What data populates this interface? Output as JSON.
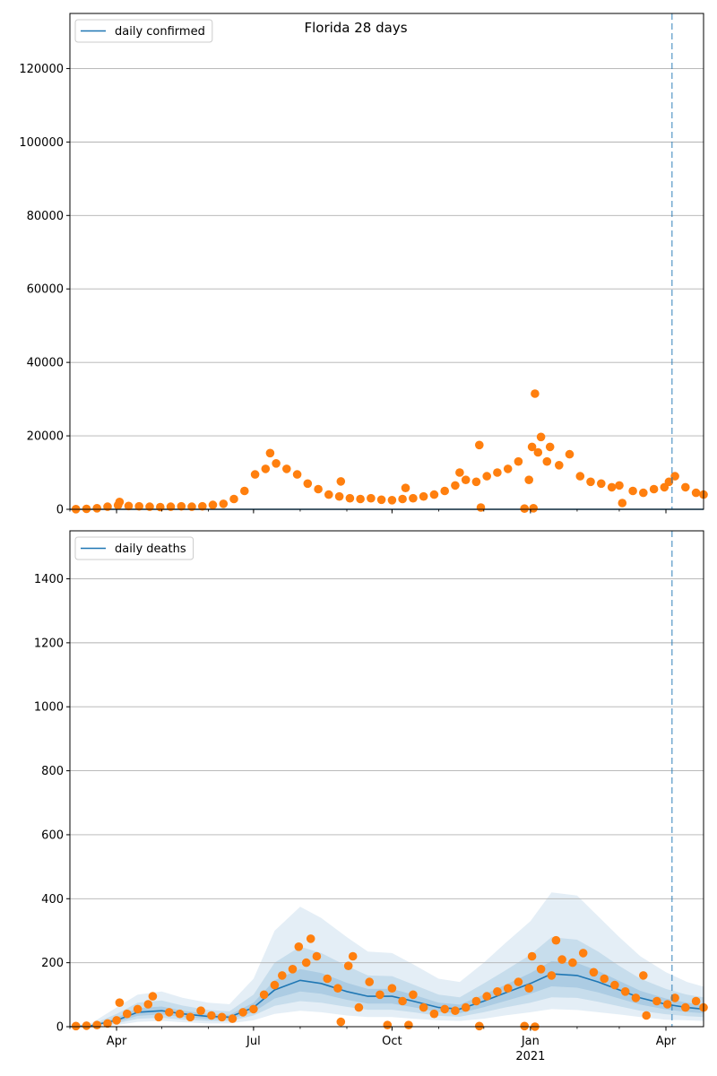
{
  "figure": {
    "title": "Florida 28 days",
    "year_label": "2021"
  },
  "chart_data": [
    {
      "type": "scatter",
      "legend": "top-left",
      "grid": "y",
      "line_series": {
        "name": "daily confirmed",
        "color": "#1f77b4",
        "values_note": "line along zero"
      },
      "points_color": "#ff7f0e",
      "xlim": [
        "2020-03-01",
        "2021-04-26"
      ],
      "ylim": [
        0,
        135000
      ],
      "yticks": [
        0,
        20000,
        40000,
        60000,
        80000,
        100000,
        120000
      ],
      "xticks": [
        {
          "date": "2020-04-01",
          "label": "Apr"
        },
        {
          "date": "2020-07-01",
          "label": "Jul"
        },
        {
          "date": "2020-10-01",
          "label": "Oct"
        },
        {
          "date": "2021-01-01",
          "label": "Jan"
        },
        {
          "date": "2021-04-01",
          "label": "Apr"
        }
      ],
      "vline_date": "2021-04-05",
      "points": [
        [
          "2020-03-05",
          50
        ],
        [
          "2020-03-12",
          120
        ],
        [
          "2020-03-19",
          300
        ],
        [
          "2020-03-26",
          700
        ],
        [
          "2020-04-02",
          1100
        ],
        [
          "2020-04-03",
          2000
        ],
        [
          "2020-04-09",
          900
        ],
        [
          "2020-04-16",
          800
        ],
        [
          "2020-04-23",
          700
        ],
        [
          "2020-04-30",
          600
        ],
        [
          "2020-05-07",
          700
        ],
        [
          "2020-05-14",
          800
        ],
        [
          "2020-05-21",
          700
        ],
        [
          "2020-05-28",
          800
        ],
        [
          "2020-06-04",
          1200
        ],
        [
          "2020-06-11",
          1500
        ],
        [
          "2020-06-18",
          2800
        ],
        [
          "2020-06-25",
          5000
        ],
        [
          "2020-07-02",
          9500
        ],
        [
          "2020-07-09",
          11000
        ],
        [
          "2020-07-12",
          15300
        ],
        [
          "2020-07-16",
          12500
        ],
        [
          "2020-07-23",
          11000
        ],
        [
          "2020-07-30",
          9500
        ],
        [
          "2020-08-06",
          7000
        ],
        [
          "2020-08-13",
          5500
        ],
        [
          "2020-08-20",
          4000
        ],
        [
          "2020-08-27",
          3500
        ],
        [
          "2020-08-28",
          7600
        ],
        [
          "2020-09-03",
          3000
        ],
        [
          "2020-09-10",
          2800
        ],
        [
          "2020-09-17",
          3000
        ],
        [
          "2020-09-24",
          2600
        ],
        [
          "2020-10-01",
          2500
        ],
        [
          "2020-10-08",
          2800
        ],
        [
          "2020-10-10",
          5800
        ],
        [
          "2020-10-15",
          3000
        ],
        [
          "2020-10-22",
          3500
        ],
        [
          "2020-10-29",
          4000
        ],
        [
          "2020-11-05",
          5000
        ],
        [
          "2020-11-12",
          6500
        ],
        [
          "2020-11-15",
          10000
        ],
        [
          "2020-11-19",
          8000
        ],
        [
          "2020-11-26",
          7500
        ],
        [
          "2020-11-28",
          17500
        ],
        [
          "2020-11-29",
          500
        ],
        [
          "2020-12-03",
          9000
        ],
        [
          "2020-12-10",
          10000
        ],
        [
          "2020-12-17",
          11000
        ],
        [
          "2020-12-24",
          13000
        ],
        [
          "2020-12-28",
          200
        ],
        [
          "2020-12-31",
          8000
        ],
        [
          "2021-01-02",
          17000
        ],
        [
          "2021-01-03",
          300
        ],
        [
          "2021-01-04",
          31500
        ],
        [
          "2021-01-06",
          15500
        ],
        [
          "2021-01-08",
          19700
        ],
        [
          "2021-01-12",
          13000
        ],
        [
          "2021-01-14",
          17000
        ],
        [
          "2021-01-20",
          12000
        ],
        [
          "2021-01-27",
          15000
        ],
        [
          "2021-02-03",
          9000
        ],
        [
          "2021-02-10",
          7500
        ],
        [
          "2021-02-17",
          7000
        ],
        [
          "2021-02-24",
          6000
        ],
        [
          "2021-03-01",
          6500
        ],
        [
          "2021-03-03",
          1700
        ],
        [
          "2021-03-10",
          5000
        ],
        [
          "2021-03-17",
          4500
        ],
        [
          "2021-03-24",
          5500
        ],
        [
          "2021-03-31",
          6000
        ],
        [
          "2021-04-03",
          7500
        ],
        [
          "2021-04-07",
          9000
        ],
        [
          "2021-04-14",
          6000
        ],
        [
          "2021-04-21",
          4500
        ],
        [
          "2021-04-26",
          4000
        ]
      ]
    },
    {
      "type": "line",
      "legend": "top-left",
      "grid": "y",
      "line_series": {
        "name": "daily deaths",
        "color": "#1f77b4"
      },
      "band_color": "#1f77b4",
      "points_color": "#ff7f0e",
      "xlim": [
        "2020-03-01",
        "2021-04-26"
      ],
      "ylim": [
        0,
        1550
      ],
      "yticks": [
        0,
        200,
        400,
        600,
        800,
        1000,
        1200,
        1400
      ],
      "xticks": [
        {
          "date": "2020-04-01",
          "label": "Apr"
        },
        {
          "date": "2020-07-01",
          "label": "Jul"
        },
        {
          "date": "2020-10-01",
          "label": "Oct"
        },
        {
          "date": "2021-01-01",
          "label": "Jan"
        },
        {
          "date": "2021-04-01",
          "label": "Apr"
        }
      ],
      "vline_date": "2021-04-05",
      "mean": [
        [
          "2020-03-01",
          0
        ],
        [
          "2020-03-15",
          3
        ],
        [
          "2020-04-01",
          20
        ],
        [
          "2020-04-15",
          45
        ],
        [
          "2020-05-01",
          50
        ],
        [
          "2020-05-15",
          40
        ],
        [
          "2020-06-01",
          32
        ],
        [
          "2020-06-15",
          30
        ],
        [
          "2020-07-01",
          60
        ],
        [
          "2020-07-15",
          115
        ],
        [
          "2020-08-01",
          145
        ],
        [
          "2020-08-15",
          135
        ],
        [
          "2020-09-01",
          110
        ],
        [
          "2020-09-15",
          95
        ],
        [
          "2020-10-01",
          95
        ],
        [
          "2020-10-15",
          80
        ],
        [
          "2020-11-01",
          60
        ],
        [
          "2020-11-15",
          55
        ],
        [
          "2020-12-01",
          80
        ],
        [
          "2020-12-15",
          105
        ],
        [
          "2021-01-01",
          135
        ],
        [
          "2021-01-15",
          165
        ],
        [
          "2021-02-01",
          160
        ],
        [
          "2021-02-15",
          140
        ],
        [
          "2021-03-01",
          115
        ],
        [
          "2021-03-15",
          90
        ],
        [
          "2021-04-01",
          70
        ],
        [
          "2021-04-15",
          60
        ],
        [
          "2021-04-26",
          55
        ]
      ],
      "band_outer": [
        [
          "2020-03-01",
          0,
          2
        ],
        [
          "2020-03-15",
          0,
          10
        ],
        [
          "2020-04-01",
          5,
          60
        ],
        [
          "2020-04-15",
          15,
          100
        ],
        [
          "2020-05-01",
          18,
          110
        ],
        [
          "2020-05-15",
          14,
          90
        ],
        [
          "2020-06-01",
          10,
          75
        ],
        [
          "2020-06-15",
          10,
          70
        ],
        [
          "2020-07-01",
          20,
          150
        ],
        [
          "2020-07-15",
          40,
          300
        ],
        [
          "2020-08-01",
          50,
          375
        ],
        [
          "2020-08-15",
          45,
          340
        ],
        [
          "2020-09-01",
          35,
          280
        ],
        [
          "2020-09-15",
          30,
          235
        ],
        [
          "2020-10-01",
          30,
          230
        ],
        [
          "2020-10-15",
          25,
          195
        ],
        [
          "2020-11-01",
          20,
          150
        ],
        [
          "2020-11-15",
          18,
          140
        ],
        [
          "2020-12-01",
          25,
          200
        ],
        [
          "2020-12-15",
          35,
          260
        ],
        [
          "2021-01-01",
          45,
          330
        ],
        [
          "2021-01-15",
          55,
          420
        ],
        [
          "2021-02-01",
          52,
          410
        ],
        [
          "2021-02-15",
          45,
          345
        ],
        [
          "2021-03-01",
          38,
          280
        ],
        [
          "2021-03-15",
          30,
          220
        ],
        [
          "2021-04-01",
          22,
          170
        ],
        [
          "2021-04-15",
          20,
          140
        ],
        [
          "2021-04-26",
          18,
          125
        ]
      ],
      "band_mid": [
        [
          "2020-03-01",
          0,
          1
        ],
        [
          "2020-03-15",
          1,
          6
        ],
        [
          "2020-04-01",
          10,
          40
        ],
        [
          "2020-04-15",
          25,
          75
        ],
        [
          "2020-05-01",
          28,
          82
        ],
        [
          "2020-05-15",
          22,
          66
        ],
        [
          "2020-06-01",
          18,
          52
        ],
        [
          "2020-06-15",
          17,
          48
        ],
        [
          "2020-07-01",
          35,
          100
        ],
        [
          "2020-07-15",
          65,
          200
        ],
        [
          "2020-08-01",
          80,
          250
        ],
        [
          "2020-08-15",
          75,
          230
        ],
        [
          "2020-09-01",
          62,
          190
        ],
        [
          "2020-09-15",
          53,
          160
        ],
        [
          "2020-10-01",
          53,
          158
        ],
        [
          "2020-10-15",
          45,
          132
        ],
        [
          "2020-11-01",
          34,
          100
        ],
        [
          "2020-11-15",
          31,
          92
        ],
        [
          "2020-12-01",
          45,
          135
        ],
        [
          "2020-12-15",
          60,
          175
        ],
        [
          "2021-01-01",
          75,
          225
        ],
        [
          "2021-01-15",
          92,
          280
        ],
        [
          "2021-02-01",
          90,
          272
        ],
        [
          "2021-02-15",
          78,
          235
        ],
        [
          "2021-03-01",
          64,
          190
        ],
        [
          "2021-03-15",
          50,
          150
        ],
        [
          "2021-04-01",
          39,
          118
        ],
        [
          "2021-04-15",
          33,
          100
        ],
        [
          "2021-04-26",
          30,
          92
        ]
      ],
      "band_inner": [
        [
          "2020-03-01",
          0,
          1
        ],
        [
          "2020-03-15",
          2,
          5
        ],
        [
          "2020-04-01",
          14,
          28
        ],
        [
          "2020-04-15",
          34,
          58
        ],
        [
          "2020-05-01",
          38,
          63
        ],
        [
          "2020-05-15",
          30,
          50
        ],
        [
          "2020-06-01",
          24,
          40
        ],
        [
          "2020-06-15",
          23,
          37
        ],
        [
          "2020-07-01",
          46,
          75
        ],
        [
          "2020-07-15",
          88,
          145
        ],
        [
          "2020-08-01",
          110,
          180
        ],
        [
          "2020-08-15",
          103,
          168
        ],
        [
          "2020-09-01",
          84,
          137
        ],
        [
          "2020-09-15",
          72,
          118
        ],
        [
          "2020-10-01",
          72,
          118
        ],
        [
          "2020-10-15",
          61,
          100
        ],
        [
          "2020-11-01",
          46,
          75
        ],
        [
          "2020-11-15",
          42,
          69
        ],
        [
          "2020-12-01",
          61,
          100
        ],
        [
          "2020-12-15",
          80,
          130
        ],
        [
          "2021-01-01",
          103,
          168
        ],
        [
          "2021-01-15",
          126,
          205
        ],
        [
          "2021-02-01",
          122,
          199
        ],
        [
          "2021-02-15",
          107,
          174
        ],
        [
          "2021-03-01",
          88,
          143
        ],
        [
          "2021-03-15",
          69,
          112
        ],
        [
          "2021-04-01",
          54,
          88
        ],
        [
          "2021-04-15",
          46,
          75
        ],
        [
          "2021-04-26",
          42,
          68
        ]
      ],
      "points": [
        [
          "2020-03-05",
          2
        ],
        [
          "2020-03-12",
          3
        ],
        [
          "2020-03-19",
          5
        ],
        [
          "2020-03-26",
          10
        ],
        [
          "2020-04-01",
          20
        ],
        [
          "2020-04-03",
          75
        ],
        [
          "2020-04-08",
          40
        ],
        [
          "2020-04-15",
          55
        ],
        [
          "2020-04-22",
          70
        ],
        [
          "2020-04-25",
          95
        ],
        [
          "2020-04-29",
          30
        ],
        [
          "2020-05-06",
          45
        ],
        [
          "2020-05-13",
          40
        ],
        [
          "2020-05-20",
          30
        ],
        [
          "2020-05-27",
          50
        ],
        [
          "2020-06-03",
          35
        ],
        [
          "2020-06-10",
          30
        ],
        [
          "2020-06-17",
          25
        ],
        [
          "2020-06-24",
          45
        ],
        [
          "2020-07-01",
          55
        ],
        [
          "2020-07-08",
          100
        ],
        [
          "2020-07-15",
          130
        ],
        [
          "2020-07-20",
          160
        ],
        [
          "2020-07-27",
          180
        ],
        [
          "2020-07-31",
          250
        ],
        [
          "2020-08-05",
          200
        ],
        [
          "2020-08-08",
          275
        ],
        [
          "2020-08-12",
          220
        ],
        [
          "2020-08-19",
          150
        ],
        [
          "2020-08-26",
          120
        ],
        [
          "2020-08-28",
          15
        ],
        [
          "2020-09-02",
          190
        ],
        [
          "2020-09-05",
          220
        ],
        [
          "2020-09-09",
          60
        ],
        [
          "2020-09-16",
          140
        ],
        [
          "2020-09-23",
          100
        ],
        [
          "2020-09-28",
          5
        ],
        [
          "2020-10-01",
          120
        ],
        [
          "2020-10-08",
          80
        ],
        [
          "2020-10-12",
          5
        ],
        [
          "2020-10-15",
          100
        ],
        [
          "2020-10-22",
          60
        ],
        [
          "2020-10-29",
          40
        ],
        [
          "2020-11-05",
          55
        ],
        [
          "2020-11-12",
          50
        ],
        [
          "2020-11-19",
          60
        ],
        [
          "2020-11-26",
          80
        ],
        [
          "2020-11-28",
          2
        ],
        [
          "2020-12-03",
          95
        ],
        [
          "2020-12-10",
          110
        ],
        [
          "2020-12-17",
          120
        ],
        [
          "2020-12-24",
          140
        ],
        [
          "2020-12-28",
          2
        ],
        [
          "2020-12-31",
          120
        ],
        [
          "2021-01-02",
          220
        ],
        [
          "2021-01-04",
          0
        ],
        [
          "2021-01-08",
          180
        ],
        [
          "2021-01-15",
          160
        ],
        [
          "2021-01-18",
          270
        ],
        [
          "2021-01-22",
          210
        ],
        [
          "2021-01-29",
          200
        ],
        [
          "2021-02-05",
          230
        ],
        [
          "2021-02-12",
          170
        ],
        [
          "2021-02-19",
          150
        ],
        [
          "2021-02-26",
          130
        ],
        [
          "2021-03-05",
          110
        ],
        [
          "2021-03-12",
          90
        ],
        [
          "2021-03-17",
          160
        ],
        [
          "2021-03-19",
          35
        ],
        [
          "2021-03-26",
          80
        ],
        [
          "2021-04-02",
          70
        ],
        [
          "2021-04-07",
          90
        ],
        [
          "2021-04-14",
          60
        ],
        [
          "2021-04-21",
          80
        ],
        [
          "2021-04-26",
          60
        ]
      ]
    }
  ]
}
